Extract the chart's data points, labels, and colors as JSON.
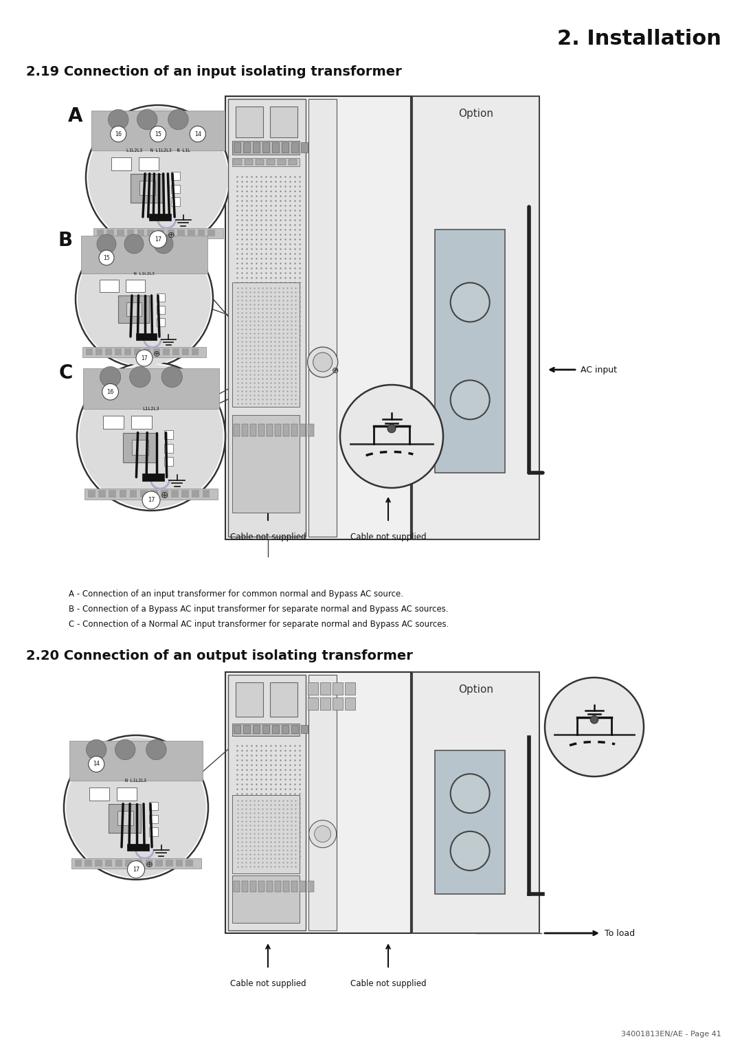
{
  "page_title": "2. Installation",
  "section1_title": "2.19 Connection of an input isolating transformer",
  "section2_title": "2.20 Connection of an output isolating transformer",
  "footer": "34001813EN/AE - Page 41",
  "caption_A": "A - Connection of an input transformer for common normal and Bypass AC source.",
  "caption_B": "B - Connection of a Bypass AC input transformer for separate normal and Bypass AC sources.",
  "caption_C": "C - Connection of a Normal AC input transformer for separate normal and Bypass AC sources.",
  "label_option": "Option",
  "label_ac_input": "AC input",
  "label_to_load": "To load",
  "label_cable_ns": "Cable not supplied",
  "bg_color": "#ffffff",
  "line_color": "#333333",
  "fill_light": "#e8e8e8",
  "fill_mid": "#c8c8c8",
  "fill_dark": "#999999",
  "fill_blue_gray": "#c5cfd8",
  "transformer_fill": "#b8c4cc"
}
